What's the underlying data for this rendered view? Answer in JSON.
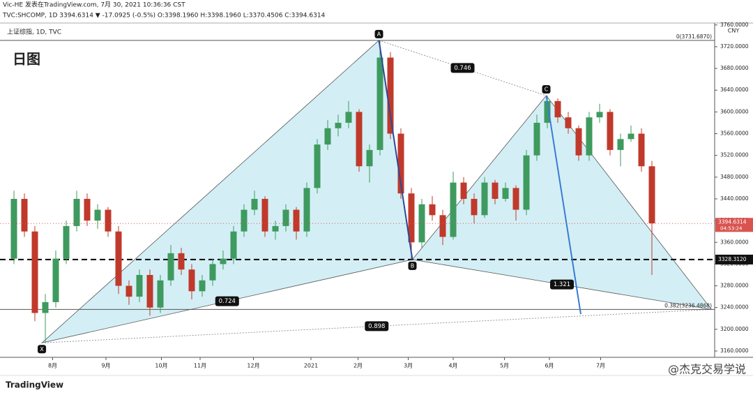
{
  "header": {
    "publisher": "Vic-HE 发表在TradingView.com, 7月 30, 2021 10:36:36 CST",
    "ohlc_line": "TVC:SHCOMP, 1D 3394.6314 ▼ -17.0925 (-0.5%) O:3398.1960 H:3398.1960 L:3370.4506 C:3394.6314"
  },
  "chart_data": {
    "type": "candlestick",
    "subtitle": "上证综指, 1D, TVC",
    "title": "日图",
    "currency": "CNY",
    "up_color": "#3f9a5f",
    "down_color": "#c0392b",
    "xlim": [
      -1.333,
      67
    ],
    "ylim": [
      3151,
      3761
    ],
    "xticks": [
      {
        "value": 3.7,
        "label": "8月"
      },
      {
        "value": 8.8,
        "label": "9月"
      },
      {
        "value": 14.1,
        "label": "10月"
      },
      {
        "value": 17.8,
        "label": "11月"
      },
      {
        "value": 22.9,
        "label": "12月"
      },
      {
        "value": 28.4,
        "label": "2021"
      },
      {
        "value": 32.9,
        "label": "2月"
      },
      {
        "value": 37.7,
        "label": "3月"
      },
      {
        "value": 42,
        "label": "4月"
      },
      {
        "value": 46.9,
        "label": "5月"
      },
      {
        "value": 51.2,
        "label": "6月"
      },
      {
        "value": 56.1,
        "label": "7月"
      }
    ],
    "yticks": [
      {
        "value": 3160,
        "label": "3160.0000"
      },
      {
        "value": 3200,
        "label": "3200.0000"
      },
      {
        "value": 3240,
        "label": "3240.0000"
      },
      {
        "value": 3280,
        "label": "3280.0000"
      },
      {
        "value": 3320,
        "label": "3320.0000"
      },
      {
        "value": 3360,
        "label": "3360.0000"
      },
      {
        "value": 3400,
        "label": "3400.0000"
      },
      {
        "value": 3440,
        "label": "3440.0000"
      },
      {
        "value": 3480,
        "label": "3480.0000"
      },
      {
        "value": 3520,
        "label": "3520.0000"
      },
      {
        "value": 3560,
        "label": "3560.0000"
      },
      {
        "value": 3600,
        "label": "3600.0000"
      },
      {
        "value": 3640,
        "label": "3640.0000"
      },
      {
        "value": 3680,
        "label": "3680.0000"
      },
      {
        "value": 3720,
        "label": "3720.0000"
      },
      {
        "value": 3760,
        "label": "3760.0000"
      }
    ],
    "candles": [
      [
        3330,
        3455,
        3320,
        3440
      ],
      [
        3440,
        3450,
        3370,
        3380
      ],
      [
        3380,
        3390,
        3215,
        3230
      ],
      [
        3230,
        3265,
        3175,
        3250
      ],
      [
        3250,
        3345,
        3240,
        3330
      ],
      [
        3330,
        3400,
        3320,
        3390
      ],
      [
        3390,
        3455,
        3380,
        3440
      ],
      [
        3440,
        3450,
        3390,
        3400
      ],
      [
        3400,
        3430,
        3385,
        3420
      ],
      [
        3420,
        3425,
        3370,
        3380
      ],
      [
        3380,
        3390,
        3265,
        3280
      ],
      [
        3280,
        3290,
        3245,
        3260
      ],
      [
        3260,
        3310,
        3250,
        3300
      ],
      [
        3300,
        3310,
        3225,
        3240
      ],
      [
        3240,
        3300,
        3230,
        3290
      ],
      [
        3290,
        3355,
        3280,
        3340
      ],
      [
        3340,
        3350,
        3300,
        3310
      ],
      [
        3310,
        3320,
        3255,
        3270
      ],
      [
        3270,
        3300,
        3260,
        3290
      ],
      [
        3290,
        3330,
        3280,
        3320
      ],
      [
        3320,
        3345,
        3310,
        3330
      ],
      [
        3330,
        3390,
        3320,
        3380
      ],
      [
        3380,
        3430,
        3370,
        3420
      ],
      [
        3420,
        3455,
        3410,
        3440
      ],
      [
        3440,
        3445,
        3370,
        3380
      ],
      [
        3380,
        3400,
        3365,
        3390
      ],
      [
        3390,
        3430,
        3380,
        3420
      ],
      [
        3420,
        3425,
        3365,
        3380
      ],
      [
        3380,
        3470,
        3370,
        3460
      ],
      [
        3460,
        3550,
        3450,
        3540
      ],
      [
        3540,
        3585,
        3530,
        3570
      ],
      [
        3570,
        3595,
        3555,
        3580
      ],
      [
        3580,
        3620,
        3570,
        3600
      ],
      [
        3600,
        3605,
        3490,
        3500
      ],
      [
        3500,
        3540,
        3470,
        3530
      ],
      [
        3530,
        3731.69,
        3520,
        3700
      ],
      [
        3700,
        3710,
        3550,
        3560
      ],
      [
        3560,
        3570,
        3440,
        3450
      ],
      [
        3450,
        3460,
        3328.31,
        3360
      ],
      [
        3360,
        3440,
        3350,
        3430
      ],
      [
        3430,
        3445,
        3400,
        3410
      ],
      [
        3410,
        3420,
        3355,
        3370
      ],
      [
        3370,
        3490,
        3365,
        3470
      ],
      [
        3470,
        3480,
        3430,
        3440
      ],
      [
        3440,
        3450,
        3395,
        3410
      ],
      [
        3410,
        3480,
        3405,
        3470
      ],
      [
        3470,
        3475,
        3430,
        3440
      ],
      [
        3440,
        3470,
        3435,
        3460
      ],
      [
        3460,
        3465,
        3400,
        3420
      ],
      [
        3420,
        3530,
        3410,
        3520
      ],
      [
        3520,
        3595,
        3510,
        3580
      ],
      [
        3580,
        3630,
        3570,
        3620
      ],
      [
        3620,
        3625,
        3580,
        3590
      ],
      [
        3590,
        3600,
        3560,
        3570
      ],
      [
        3570,
        3575,
        3510,
        3520
      ],
      [
        3520,
        3600,
        3510,
        3590
      ],
      [
        3590,
        3615,
        3580,
        3600
      ],
      [
        3600,
        3605,
        3520,
        3530
      ],
      [
        3530,
        3560,
        3500,
        3550
      ],
      [
        3550,
        3575,
        3545,
        3560
      ],
      [
        3560,
        3570,
        3490,
        3500
      ],
      [
        3500,
        3510,
        3300,
        3395
      ]
    ],
    "pattern_points": [
      {
        "label": "X",
        "x": 2.67,
        "y": 3175
      },
      {
        "label": "A",
        "x": 34.9,
        "y": 3731.69
      },
      {
        "label": "B",
        "x": 38.1,
        "y": 3328.31
      },
      {
        "label": "C",
        "x": 50.9,
        "y": 3630
      },
      {
        "x": 66.7,
        "y": 3236.49
      }
    ],
    "ratios": [
      {
        "value": 0.746,
        "from": 1,
        "to": 3
      },
      {
        "value": 0.724,
        "from": 0,
        "to": 2
      },
      {
        "value": 1.321,
        "from": 2,
        "to": 4
      },
      {
        "value": 0.898,
        "from": 0,
        "to": 4
      }
    ],
    "blue_lines": [
      [
        {
          "x": 34.9,
          "y": 3731.69
        },
        {
          "x": 38.1,
          "y": 3328.31
        }
      ],
      [
        {
          "x": 50.9,
          "y": 3630
        },
        {
          "x": 54.2,
          "y": 3228
        }
      ]
    ],
    "levels": [
      {
        "value": 3731.687,
        "label": "0(3731.6870)"
      },
      {
        "value": 3328.312,
        "label": "3328.3120"
      },
      {
        "value": 3236.4868,
        "label": "0.382(3236.4868)"
      }
    ],
    "last": {
      "value": 3394.6314,
      "countdown": "04:53:24"
    }
  },
  "footer": {
    "brand": "TradingView",
    "watermark": "@杰克交易学说"
  }
}
